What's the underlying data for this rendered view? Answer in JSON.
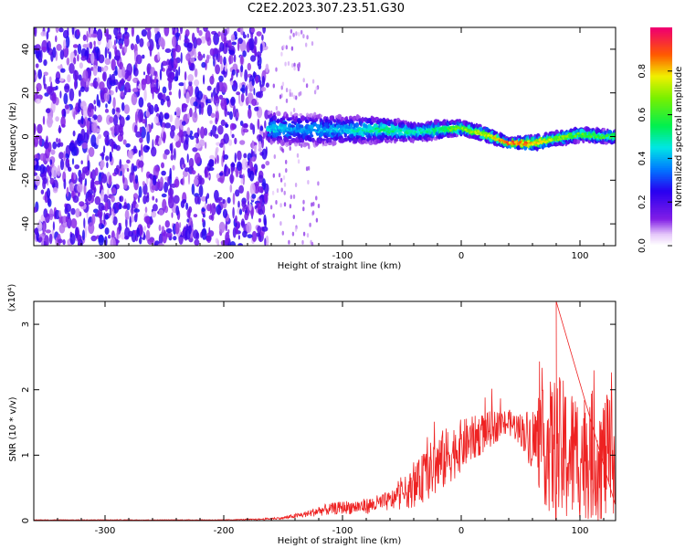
{
  "figure_title": "C2E2.2023.307.23.51.G30",
  "colorbar": {
    "label": "Normalized spectral amplitude",
    "ticks": [
      "0.0",
      "0.2",
      "0.4",
      "0.6",
      "0.8"
    ],
    "tick_values": [
      0.0,
      0.2,
      0.4,
      0.6,
      0.8
    ],
    "colormap": "rainbow (white-purple-blue-cyan-green-yellow-red-magenta)"
  },
  "chart_data": [
    {
      "type": "heatmap",
      "title": "",
      "xlabel": "Height of straight line (km)",
      "ylabel": "Frequency (Hz)",
      "xlim": [
        -360,
        130
      ],
      "ylim": [
        -50,
        50
      ],
      "x_ticks": [
        -300,
        -200,
        -100,
        0,
        100
      ],
      "x_tick_labels": [
        "-300",
        "-200",
        "-100",
        "0",
        "100"
      ],
      "y_ticks": [
        -40,
        -20,
        0,
        20,
        40
      ],
      "y_tick_labels": [
        "-40",
        "-20",
        "0",
        "20",
        "40"
      ],
      "noise_region": {
        "x_range": [
          -360,
          -163
        ],
        "level": 0.12
      },
      "ridge": {
        "x": [
          -163,
          -140,
          -120,
          -100,
          -80,
          -60,
          -40,
          -20,
          0,
          20,
          40,
          60,
          80,
          100,
          120,
          130
        ],
        "freq": [
          4,
          3,
          3,
          3,
          3,
          3,
          2,
          3,
          4,
          1,
          -3,
          -3,
          -1,
          1,
          0,
          0
        ],
        "amplitude": [
          0.45,
          0.4,
          0.4,
          0.45,
          0.5,
          0.55,
          0.5,
          0.55,
          0.7,
          0.75,
          0.9,
          0.85,
          0.7,
          0.65,
          0.6,
          0.6
        ],
        "spread": [
          7,
          7,
          7,
          6,
          6,
          5,
          4,
          4,
          3,
          3,
          2,
          3,
          3,
          3,
          3,
          3
        ]
      }
    },
    {
      "type": "line",
      "title": "",
      "xlabel": "Height of straight line (km)",
      "ylabel": "SNR (10 * v/v)",
      "y_multiplier_label": "(x10⁴)",
      "xlim": [
        -360,
        130
      ],
      "ylim": [
        0,
        3.35
      ],
      "x_ticks": [
        -300,
        -200,
        -100,
        0,
        100
      ],
      "x_tick_labels": [
        "-300",
        "-200",
        "-100",
        "0",
        "100"
      ],
      "y_ticks": [
        0,
        1,
        2,
        3
      ],
      "y_tick_labels": [
        "0",
        "1",
        "2",
        "3"
      ],
      "color": "#ee2222",
      "series": [
        {
          "x": [
            -360,
            -200,
            -170,
            -150,
            -130,
            -120,
            -100,
            -80,
            -60,
            -40,
            -30,
            -20,
            -10,
            0,
            10,
            20,
            30,
            40,
            50,
            60,
            70,
            80,
            90,
            100,
            110,
            120,
            130
          ],
          "y": [
            0.01,
            0.01,
            0.02,
            0.04,
            0.1,
            0.15,
            0.2,
            0.22,
            0.3,
            0.5,
            0.7,
            0.85,
            1.0,
            1.15,
            1.25,
            1.35,
            1.45,
            1.5,
            1.4,
            1.25,
            1.15,
            1.05,
            1.0,
            1.0,
            1.0,
            0.95,
            0.95
          ],
          "noise_amplitude": [
            0.005,
            0.005,
            0.01,
            0.02,
            0.05,
            0.08,
            0.1,
            0.12,
            0.15,
            0.3,
            0.4,
            0.5,
            0.45,
            0.4,
            0.35,
            0.3,
            0.25,
            0.2,
            0.25,
            0.5,
            0.9,
            1.2,
            1.1,
            1.0,
            1.0,
            1.0,
            0.9
          ]
        }
      ],
      "peak": {
        "x": 80,
        "y": 3.35
      }
    }
  ]
}
